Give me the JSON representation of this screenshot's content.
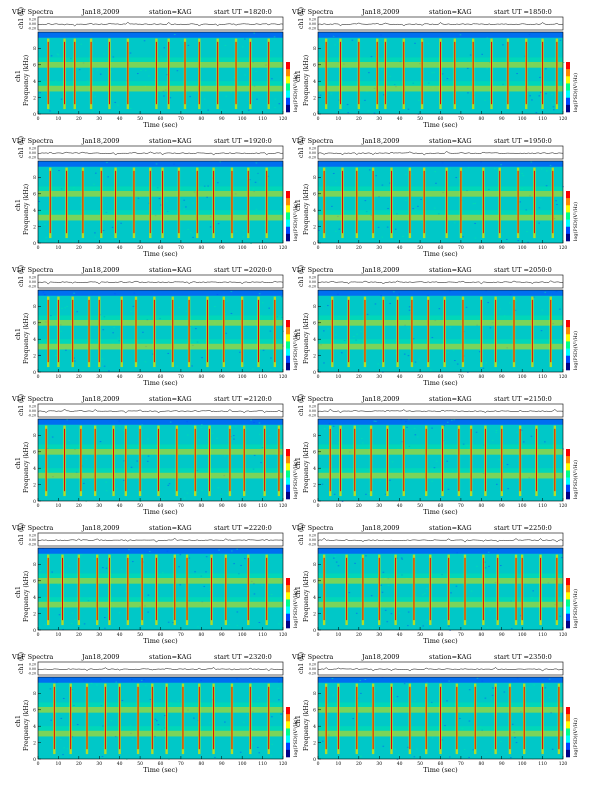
{
  "colors": {
    "background": "#00c8c8",
    "noise_low": "#0050ff",
    "mid": "#00e6aa",
    "high": "#dede00",
    "peak": "#e60000",
    "trace": "#000000",
    "colorbar": [
      "#ff0000",
      "#ff8800",
      "#ffff00",
      "#00ff88",
      "#00ffff",
      "#0044ff",
      "#000088"
    ]
  },
  "chart_data": [
    {
      "type": "heatmap",
      "title": "VLF Spectra",
      "date": "Jan18,2009",
      "station": "station=KAG",
      "start": "start  UT =1820:0",
      "xlabel": "Time  (sec)",
      "ylabel": "Frequency  (kHz)",
      "ch_label": "ch1",
      "trace_label": "ch1 (V)",
      "cbar_label": "log(PSD)(V²/Hz)",
      "xlim": [
        0,
        120
      ],
      "ylim": [
        0,
        10
      ],
      "x_ticks": [
        "0",
        "10",
        "20",
        "30",
        "40",
        "50",
        "60",
        "70",
        "80",
        "90",
        "100",
        "110",
        "120"
      ],
      "y_ticks": [
        "0",
        "2",
        "4",
        "6",
        "8"
      ],
      "trace_ticks": [
        "0.20",
        "0.00",
        "-0.20"
      ],
      "grid_bands_khz": [
        6,
        3.1
      ],
      "burst_times": [
        5,
        13,
        18,
        26,
        35,
        44,
        58,
        64,
        72,
        79,
        88,
        97,
        104,
        113
      ]
    },
    {
      "type": "heatmap",
      "title": "VLF Spectra",
      "date": "Jan18,2009",
      "station": "station=KAG",
      "start": "start  UT =1850:0",
      "xlabel": "Time  (sec)",
      "ylabel": "Frequency  (kHz)",
      "ch_label": "ch1",
      "trace_label": "ch1 (V)",
      "cbar_label": "log(PSD)(V²/Hz)",
      "xlim": [
        0,
        120
      ],
      "ylim": [
        0,
        10
      ],
      "x_ticks": [
        "0",
        "10",
        "20",
        "30",
        "40",
        "50",
        "60",
        "70",
        "80",
        "90",
        "100",
        "110",
        "120"
      ],
      "y_ticks": [
        "0",
        "2",
        "4",
        "6",
        "8"
      ],
      "trace_ticks": [
        "0.20",
        "0.00",
        "-0.20"
      ],
      "grid_bands_khz": [
        6,
        3.1
      ],
      "burst_times": [
        4,
        11,
        20,
        29,
        33,
        42,
        51,
        60,
        67,
        76,
        85,
        93,
        102,
        110,
        117
      ]
    },
    {
      "type": "heatmap",
      "title": "VLF Spectra",
      "date": "Jan18,2009",
      "station": "station=KAG",
      "start": "start  UT =1920:0",
      "xlabel": "Time  (sec)",
      "ylabel": "Frequency  (kHz)",
      "ch_label": "ch1",
      "trace_label": "ch1 (V)",
      "cbar_label": "log(PSD)(V²/Hz)",
      "xlim": [
        0,
        120
      ],
      "ylim": [
        0,
        10
      ],
      "x_ticks": [
        "0",
        "10",
        "20",
        "30",
        "40",
        "50",
        "60",
        "70",
        "80",
        "90",
        "100",
        "110",
        "120"
      ],
      "y_ticks": [
        "0",
        "2",
        "4",
        "6",
        "8"
      ],
      "trace_ticks": [
        "0.20",
        "0.00",
        "-0.20"
      ],
      "grid_bands_khz": [
        6,
        3.1
      ],
      "burst_times": [
        6,
        14,
        22,
        31,
        38,
        47,
        55,
        61,
        69,
        78,
        86,
        95,
        103,
        112
      ]
    },
    {
      "type": "heatmap",
      "title": "VLF Spectra",
      "date": "Jan18,2009",
      "station": "station=KAG",
      "start": "start  UT =1950:0",
      "xlabel": "Time  (sec)",
      "ylabel": "Frequency  (kHz)",
      "ch_label": "ch1",
      "trace_label": "ch1 (V)",
      "cbar_label": "log(PSD)(V²/Hz)",
      "xlim": [
        0,
        120
      ],
      "ylim": [
        0,
        10
      ],
      "x_ticks": [
        "0",
        "10",
        "20",
        "30",
        "40",
        "50",
        "60",
        "70",
        "80",
        "90",
        "100",
        "110",
        "120"
      ],
      "y_ticks": [
        "0",
        "2",
        "4",
        "6",
        "8"
      ],
      "trace_ticks": [
        "0.20",
        "0.00",
        "-0.20"
      ],
      "grid_bands_khz": [
        6,
        3.1
      ],
      "burst_times": [
        3,
        12,
        19,
        27,
        36,
        45,
        52,
        63,
        70,
        81,
        89,
        98,
        106,
        115
      ]
    },
    {
      "type": "heatmap",
      "title": "VLF Spectra",
      "date": "Jan18,2009",
      "station": "station=KAG",
      "start": "start  UT =2020:0",
      "xlabel": "Time  (sec)",
      "ylabel": "Frequency  (kHz)",
      "ch_label": "ch1",
      "trace_label": "ch1 (V)",
      "cbar_label": "log(PSD)(V²/Hz)",
      "xlim": [
        0,
        120
      ],
      "ylim": [
        0,
        10
      ],
      "x_ticks": [
        "0",
        "10",
        "20",
        "30",
        "40",
        "50",
        "60",
        "70",
        "80",
        "90",
        "100",
        "110",
        "120"
      ],
      "y_ticks": [
        "0",
        "2",
        "4",
        "6",
        "8"
      ],
      "trace_ticks": [
        "0.20",
        "0.00",
        "-0.20"
      ],
      "grid_bands_khz": [
        6,
        3.1
      ],
      "burst_times": [
        5,
        10,
        17,
        25,
        30,
        41,
        48,
        57,
        66,
        74,
        83,
        91,
        100,
        108,
        116
      ]
    },
    {
      "type": "heatmap",
      "title": "VLF Spectra",
      "date": "Jan18,2009",
      "station": "station=KAG",
      "start": "start  UT =2050:0",
      "xlabel": "Time  (sec)",
      "ylabel": "Frequency  (kHz)",
      "ch_label": "ch1",
      "trace_label": "ch1 (V)",
      "cbar_label": "log(PSD)(V²/Hz)",
      "xlim": [
        0,
        120
      ],
      "ylim": [
        0,
        10
      ],
      "x_ticks": [
        "0",
        "10",
        "20",
        "30",
        "40",
        "50",
        "60",
        "70",
        "80",
        "90",
        "100",
        "110",
        "120"
      ],
      "y_ticks": [
        "0",
        "2",
        "4",
        "6",
        "8"
      ],
      "trace_ticks": [
        "0.20",
        "0.00",
        "-0.20"
      ],
      "grid_bands_khz": [
        6,
        3.1
      ],
      "burst_times": [
        7,
        15,
        23,
        32,
        39,
        46,
        54,
        62,
        71,
        80,
        87,
        96,
        105,
        114
      ]
    },
    {
      "type": "heatmap",
      "title": "VLF Spectra",
      "date": "Jan18,2009",
      "station": "station=KAG",
      "start": "start  UT =2120:0",
      "xlabel": "Time  (sec)",
      "ylabel": "Frequency  (kHz)",
      "ch_label": "ch1",
      "trace_label": "ch1 (V)",
      "cbar_label": "log(PSD)(V²/Hz)",
      "xlim": [
        0,
        120
      ],
      "ylim": [
        0,
        10
      ],
      "x_ticks": [
        "0",
        "10",
        "20",
        "30",
        "40",
        "50",
        "60",
        "70",
        "80",
        "90",
        "100",
        "110",
        "120"
      ],
      "y_ticks": [
        "0",
        "2",
        "4",
        "6",
        "8"
      ],
      "trace_ticks": [
        "0.20",
        "0.00",
        "-0.20"
      ],
      "grid_bands_khz": [
        6,
        3.1
      ],
      "burst_times": [
        4,
        13,
        21,
        28,
        37,
        43,
        50,
        59,
        68,
        77,
        84,
        94,
        101,
        111,
        118
      ]
    },
    {
      "type": "heatmap",
      "title": "VLF Spectra",
      "date": "Jan18,2009",
      "station": "station=KAG",
      "start": "start  UT =2150:0",
      "xlabel": "Time  (sec)",
      "ylabel": "Frequency  (kHz)",
      "ch_label": "ch1",
      "trace_label": "ch1 (V)",
      "cbar_label": "log(PSD)(V²/Hz)",
      "xlim": [
        0,
        120
      ],
      "ylim": [
        0,
        10
      ],
      "x_ticks": [
        "0",
        "10",
        "20",
        "30",
        "40",
        "50",
        "60",
        "70",
        "80",
        "90",
        "100",
        "110",
        "120"
      ],
      "y_ticks": [
        "0",
        "2",
        "4",
        "6",
        "8"
      ],
      "trace_ticks": [
        "0.20",
        "0.00",
        "-0.20"
      ],
      "grid_bands_khz": [
        6,
        3.1
      ],
      "burst_times": [
        6,
        11,
        18,
        26,
        34,
        42,
        53,
        61,
        69,
        75,
        82,
        90,
        99,
        107,
        116
      ]
    },
    {
      "type": "heatmap",
      "title": "VLF Spectra",
      "date": "Jan18,2009",
      "station": "station=KAG",
      "start": "start  UT =2220:0",
      "xlabel": "Time  (sec)",
      "ylabel": "Frequency  (kHz)",
      "ch_label": "ch1",
      "trace_label": "ch1 (V)",
      "cbar_label": "log(PSD)(V²/Hz)",
      "xlim": [
        0,
        120
      ],
      "ylim": [
        0,
        10
      ],
      "x_ticks": [
        "0",
        "10",
        "20",
        "30",
        "40",
        "50",
        "60",
        "70",
        "80",
        "90",
        "100",
        "110",
        "120"
      ],
      "y_ticks": [
        "0",
        "2",
        "4",
        "6",
        "8"
      ],
      "trace_ticks": [
        "0.20",
        "0.00",
        "-0.20"
      ],
      "grid_bands_khz": [
        6,
        3.1
      ],
      "burst_times": [
        5,
        12,
        20,
        29,
        35,
        44,
        51,
        58,
        67,
        73,
        85,
        92,
        103,
        112
      ]
    },
    {
      "type": "heatmap",
      "title": "VLF Spectra",
      "date": "Jan18,2009",
      "station": "station=KAG",
      "start": "start  UT =2250:0",
      "xlabel": "Time  (sec)",
      "ylabel": "Frequency  (kHz)",
      "ch_label": "ch1",
      "trace_label": "ch1 (V)",
      "cbar_label": "log(PSD)(V²/Hz)",
      "xlim": [
        0,
        120
      ],
      "ylim": [
        0,
        10
      ],
      "x_ticks": [
        "0",
        "10",
        "20",
        "30",
        "40",
        "50",
        "60",
        "70",
        "80",
        "90",
        "100",
        "110",
        "120"
      ],
      "y_ticks": [
        "0",
        "2",
        "4",
        "6",
        "8"
      ],
      "trace_ticks": [
        "0.20",
        "0.00",
        "-0.20"
      ],
      "grid_bands_khz": [
        6,
        3.1
      ],
      "burst_times": [
        3,
        14,
        22,
        30,
        38,
        47,
        55,
        64,
        72,
        81,
        88,
        97,
        100,
        109,
        117
      ]
    },
    {
      "type": "heatmap",
      "title": "VLF Spectra",
      "date": "Jan18,2009",
      "station": "station=KAG",
      "start": "start  UT =2320:0",
      "xlabel": "Time  (sec)",
      "ylabel": "Frequency  (kHz)",
      "ch_label": "ch1",
      "trace_label": "ch1 (V)",
      "cbar_label": "log(PSD)(V²/Hz)",
      "xlim": [
        0,
        120
      ],
      "ylim": [
        0,
        10
      ],
      "x_ticks": [
        "0",
        "10",
        "20",
        "30",
        "40",
        "50",
        "60",
        "70",
        "80",
        "90",
        "100",
        "110",
        "120"
      ],
      "y_ticks": [
        "0",
        "2",
        "4",
        "6",
        "8"
      ],
      "trace_ticks": [
        "0.20",
        "0.00",
        "-0.20"
      ],
      "grid_bands_khz": [
        6,
        3.1
      ],
      "burst_times": [
        8,
        16,
        24,
        33,
        40,
        49,
        56,
        63,
        71,
        79,
        86,
        95,
        104,
        113
      ]
    },
    {
      "type": "heatmap",
      "title": "VLF Spectra",
      "date": "Jan18,2009",
      "station": "station=KAG",
      "start": "start  UT =2350:0",
      "xlabel": "Time  (sec)",
      "ylabel": "Frequency  (kHz)",
      "ch_label": "ch1",
      "trace_label": "ch1 (V)",
      "cbar_label": "log(PSD)(V²/Hz)",
      "xlim": [
        0,
        120
      ],
      "ylim": [
        0,
        10
      ],
      "x_ticks": [
        "0",
        "10",
        "20",
        "30",
        "40",
        "50",
        "60",
        "70",
        "80",
        "90",
        "100",
        "110",
        "120"
      ],
      "y_ticks": [
        "0",
        "2",
        "4",
        "6",
        "8"
      ],
      "trace_ticks": [
        "0.20",
        "0.00",
        "-0.20"
      ],
      "grid_bands_khz": [
        6,
        3.1
      ],
      "burst_times": [
        4,
        10,
        19,
        27,
        36,
        45,
        53,
        60,
        68,
        77,
        87,
        94,
        101,
        110,
        118
      ]
    }
  ]
}
